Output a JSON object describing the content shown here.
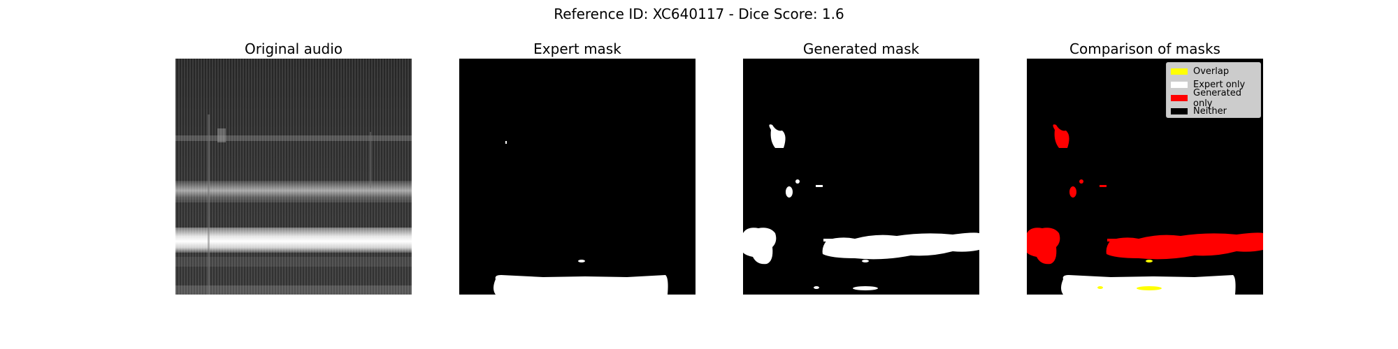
{
  "figure": {
    "title": "Reference ID: XC640117 - Dice Score: 1.6"
  },
  "panels": [
    {
      "title": "Original audio"
    },
    {
      "title": "Expert mask"
    },
    {
      "title": "Generated mask"
    },
    {
      "title": "Comparison of masks"
    }
  ],
  "legend": {
    "items": [
      {
        "label": "Overlap",
        "color": "#ffff00"
      },
      {
        "label": "Expert only",
        "color": "#ffffff"
      },
      {
        "label": "Generated only",
        "color": "#ff0000"
      },
      {
        "label": "Neither",
        "color": "#000000"
      }
    ]
  }
}
